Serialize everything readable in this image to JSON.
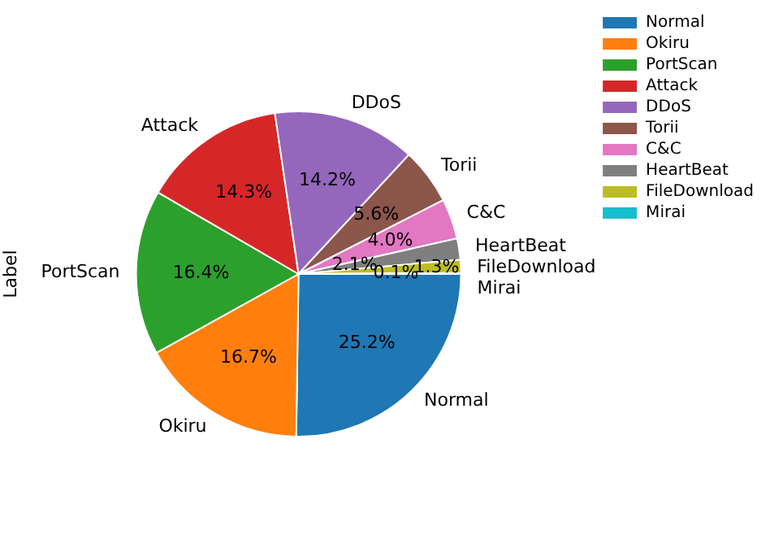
{
  "chart_data": {
    "type": "pie",
    "ylabel": "Label",
    "legend": "top right",
    "categories": [
      "Normal",
      "Okiru",
      "PortScan",
      "Attack",
      "DDoS",
      "Torii",
      "C&C",
      "HeartBeat",
      "FileDownload",
      "Mirai"
    ],
    "values": [
      25.2,
      16.7,
      16.4,
      14.3,
      14.2,
      5.6,
      4.0,
      2.1,
      1.3,
      0.1
    ],
    "value_labels": [
      "25.2%",
      "16.7%",
      "16.4%",
      "14.3%",
      "14.2%",
      "5.6%",
      "4.0%",
      "2.1%",
      "1.3%",
      "0.1%"
    ],
    "colors": [
      "#1f77b4",
      "#ff7f0e",
      "#2ca02c",
      "#d62728",
      "#9467bd",
      "#8c564b",
      "#e377c2",
      "#7f7f7f",
      "#bcbd22",
      "#17becf"
    ]
  }
}
